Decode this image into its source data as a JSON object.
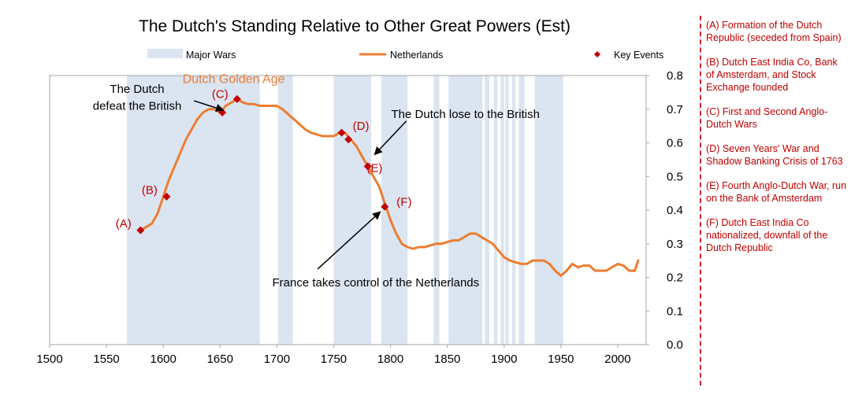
{
  "chart_data": {
    "type": "line",
    "title": "The Dutch's Standing Relative to Other Great Powers (Est)",
    "xlim": [
      1500,
      2025
    ],
    "ylim": [
      0.0,
      0.8
    ],
    "x_ticks": [
      "1500",
      "1550",
      "1600",
      "1650",
      "1700",
      "1750",
      "1800",
      "1850",
      "1900",
      "1950",
      "2000"
    ],
    "y_ticks": [
      "0.0",
      "0.1",
      "0.2",
      "0.3",
      "0.4",
      "0.5",
      "0.6",
      "0.7",
      "0.8"
    ],
    "legend": {
      "placement": "top",
      "items": [
        {
          "label": "Major Wars",
          "kind": "band",
          "color": "#dbe5f1"
        },
        {
          "label": "Netherlands",
          "kind": "line",
          "color": "#ed7d31"
        },
        {
          "label": "Key Events",
          "kind": "marker",
          "color": "#c00000"
        }
      ]
    },
    "war_periods": [
      [
        1568,
        1685
      ],
      [
        1701,
        1714
      ],
      [
        1750,
        1783
      ],
      [
        1792,
        1815
      ],
      [
        1838,
        1843
      ],
      [
        1851,
        1881
      ],
      [
        1883,
        1887
      ],
      [
        1891,
        1894
      ],
      [
        1897,
        1900
      ],
      [
        1901,
        1904
      ],
      [
        1907,
        1910
      ],
      [
        1913,
        1918
      ],
      [
        1927,
        1952
      ]
    ],
    "series": [
      {
        "name": "Netherlands",
        "color": "#ed7d31",
        "x": [
          1580,
          1585,
          1590,
          1595,
          1600,
          1605,
          1610,
          1615,
          1620,
          1625,
          1630,
          1635,
          1640,
          1645,
          1650,
          1655,
          1660,
          1665,
          1670,
          1675,
          1680,
          1685,
          1690,
          1695,
          1700,
          1705,
          1710,
          1715,
          1720,
          1725,
          1730,
          1735,
          1740,
          1745,
          1750,
          1755,
          1760,
          1765,
          1770,
          1775,
          1780,
          1785,
          1790,
          1795,
          1800,
          1805,
          1810,
          1815,
          1820,
          1825,
          1830,
          1835,
          1840,
          1845,
          1850,
          1855,
          1860,
          1865,
          1870,
          1875,
          1880,
          1885,
          1890,
          1895,
          1900,
          1905,
          1910,
          1915,
          1920,
          1925,
          1930,
          1935,
          1940,
          1945,
          1950,
          1955,
          1960,
          1965,
          1970,
          1975,
          1980,
          1985,
          1990,
          1995,
          2000,
          2005,
          2010,
          2015,
          2018
        ],
        "values": [
          0.34,
          0.35,
          0.36,
          0.39,
          0.44,
          0.49,
          0.53,
          0.57,
          0.61,
          0.64,
          0.67,
          0.69,
          0.7,
          0.7,
          0.69,
          0.71,
          0.72,
          0.73,
          0.72,
          0.715,
          0.715,
          0.71,
          0.71,
          0.71,
          0.71,
          0.7,
          0.685,
          0.67,
          0.655,
          0.64,
          0.63,
          0.625,
          0.62,
          0.62,
          0.62,
          0.63,
          0.63,
          0.61,
          0.59,
          0.56,
          0.53,
          0.5,
          0.47,
          0.42,
          0.37,
          0.33,
          0.3,
          0.29,
          0.285,
          0.29,
          0.29,
          0.295,
          0.3,
          0.3,
          0.305,
          0.31,
          0.31,
          0.32,
          0.33,
          0.33,
          0.32,
          0.31,
          0.3,
          0.28,
          0.26,
          0.25,
          0.245,
          0.24,
          0.24,
          0.25,
          0.25,
          0.25,
          0.24,
          0.22,
          0.205,
          0.22,
          0.24,
          0.23,
          0.235,
          0.235,
          0.22,
          0.22,
          0.22,
          0.23,
          0.24,
          0.235,
          0.22,
          0.22,
          0.25
        ]
      }
    ],
    "key_events": [
      {
        "label": "(A)",
        "x": 1580,
        "y": 0.34
      },
      {
        "label": "(B)",
        "x": 1603,
        "y": 0.44
      },
      {
        "label": "(C)",
        "x": 1652,
        "y": 0.69
      },
      {
        "label": "(C)",
        "x": 1665,
        "y": 0.73
      },
      {
        "label": "(D)",
        "x": 1757,
        "y": 0.63
      },
      {
        "label": "(D)",
        "x": 1763,
        "y": 0.61
      },
      {
        "label": "(E)",
        "x": 1780,
        "y": 0.53
      },
      {
        "label": "(F)",
        "x": 1795,
        "y": 0.41
      }
    ],
    "event_labels": [
      {
        "text": "(A)",
        "x": 1565,
        "y": 0.36
      },
      {
        "text": "(B)",
        "x": 1588,
        "y": 0.46
      },
      {
        "text": "(C)",
        "x": 1650,
        "y": 0.745
      },
      {
        "text": "(D)",
        "x": 1774,
        "y": 0.65
      },
      {
        "text": "(E)",
        "x": 1786,
        "y": 0.525
      },
      {
        "text": "(F)",
        "x": 1812,
        "y": 0.425
      }
    ],
    "annotations": [
      {
        "text": "Dutch Golden Age",
        "kind": "golden",
        "x": 1662,
        "y": 0.79
      },
      {
        "text": "The Dutch",
        "kind": "note",
        "x": 1577,
        "y": 0.76
      },
      {
        "text": "defeat the British",
        "kind": "note",
        "x": 1577,
        "y": 0.71
      },
      {
        "text": "The Dutch lose to the British",
        "kind": "note",
        "x": 1866,
        "y": 0.685
      },
      {
        "text": "France takes control of the Netherlands",
        "kind": "note",
        "x": 1787,
        "y": 0.185
      }
    ],
    "arrows": [
      {
        "from": [
          1627,
          0.725
        ],
        "to": [
          1653,
          0.697
        ]
      },
      {
        "from": [
          1814,
          0.665
        ],
        "to": [
          1786,
          0.565
        ]
      },
      {
        "from": [
          1736,
          0.225
        ],
        "to": [
          1791,
          0.395
        ]
      }
    ]
  },
  "sidebar_notes": [
    "(A) Formation of the Dutch Republic (seceded from Spain)",
    "(B) Dutch East India Co, Bank of Amsterdam, and Stock Exchange founded",
    "(C) First and Second Anglo-Dutch Wars",
    "(D) Seven Years' War and Shadow Banking Crisis of 1763",
    "(E) Fourth Anglo-Dutch War, run on the Bank of Amsterdam",
    "(F) Dutch East India Co nationalized, downfall of the Dutch Republic"
  ]
}
